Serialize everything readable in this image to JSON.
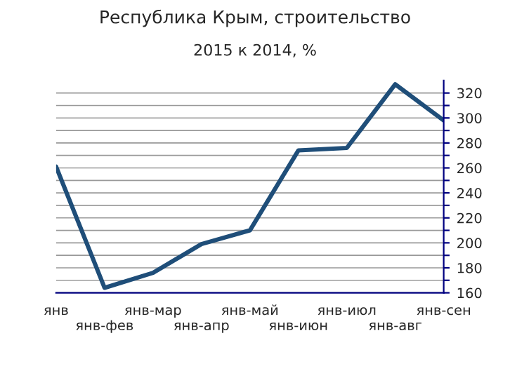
{
  "chart_data": {
    "type": "line",
    "title": "Республика Крым, строительство",
    "subtitle": "2015 к 2014, %",
    "categories": [
      "янв",
      "янв-фев",
      "янв-мар",
      "янв-апр",
      "янв-май",
      "янв-июн",
      "янв-июл",
      "янв-авг",
      "янв-сен"
    ],
    "series": [
      {
        "color": "#1f4e79",
        "values": [
          261,
          164,
          176,
          199,
          210,
          274,
          276,
          327,
          298
        ]
      }
    ],
    "ylim": [
      160,
      330
    ],
    "yticks": [
      160,
      {
        "value": 170,
        "label": null
      },
      180,
      {
        "value": 190,
        "label": null
      },
      200,
      {
        "value": 210,
        "label": null
      },
      220,
      {
        "value": 230,
        "label": null
      },
      240,
      {
        "value": 250,
        "label": null
      },
      260,
      {
        "value": 270,
        "label": null
      },
      280,
      {
        "value": 290,
        "label": null
      },
      300,
      {
        "value": 310,
        "label": null
      },
      320
    ],
    "grid": "y",
    "legend": false,
    "marker": "none",
    "line_style": "solid"
  }
}
